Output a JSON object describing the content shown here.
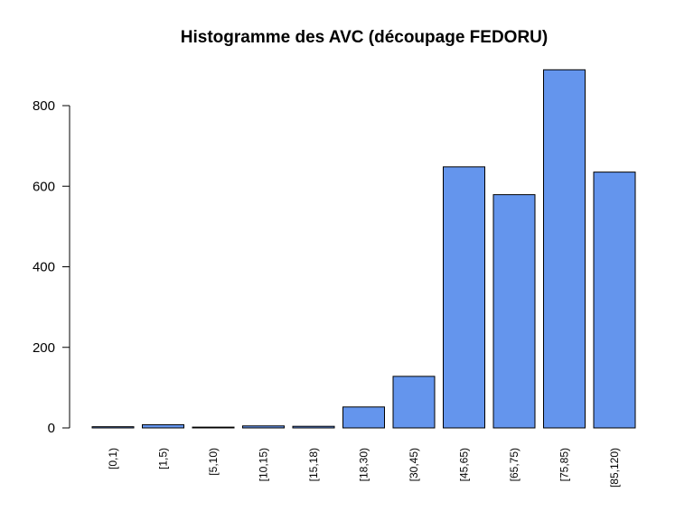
{
  "chart_data": {
    "type": "bar",
    "title": "Histogramme des AVC (découpage FEDORU)",
    "xlabel": "",
    "ylabel": "",
    "categories": [
      "[0,1)",
      "[1,5)",
      "[5,10)",
      "[10,15)",
      "[15,18)",
      "[18,30)",
      "[30,45)",
      "[45,65)",
      "[65,75)",
      "[75,85)",
      "[85,120)"
    ],
    "values": [
      3,
      8,
      2,
      5,
      4,
      52,
      128,
      648,
      579,
      889,
      635
    ],
    "ylim": [
      0,
      889
    ],
    "yticks": [
      0,
      200,
      400,
      600,
      800
    ],
    "ytick_labels": [
      "0",
      "200",
      "400",
      "600",
      "800"
    ],
    "bar_color": "#6495ED",
    "grid": false,
    "legend": "none"
  }
}
